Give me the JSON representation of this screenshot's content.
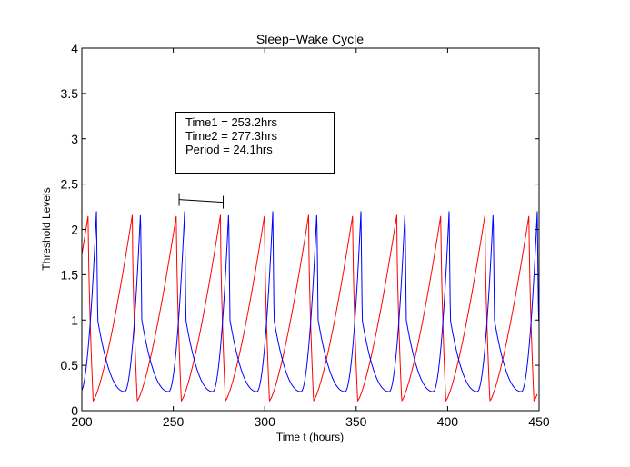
{
  "chart_data": {
    "type": "line",
    "title": "Sleep−Wake Cycle",
    "xlabel": "Time t (hours)",
    "ylabel": "Threshold Levels",
    "xlim": [
      200,
      450
    ],
    "ylim": [
      0,
      4
    ],
    "xticks": [
      "200",
      "250",
      "300",
      "350",
      "400",
      "450"
    ],
    "yticks": [
      "0",
      "0.5",
      "1",
      "1.5",
      "2",
      "2.5",
      "3",
      "3.5",
      "4"
    ],
    "grid": false,
    "series": [
      {
        "color": "#ff0000",
        "rise_start": [
          206.2,
          230.3,
          254.4,
          278.5,
          302.6,
          326.7,
          350.8,
          374.9,
          399.0,
          423.1,
          447.2
        ],
        "peaks": [
          203.5,
          227.6,
          251.7,
          275.8,
          299.9,
          324.0,
          348.1,
          372.2,
          396.3,
          420.4,
          444.5
        ],
        "min": 0.11,
        "max": 2.16,
        "start_value": 1.68
      },
      {
        "color": "#0000ff",
        "peaks": [
          208.0,
          232.1,
          256.2,
          280.3,
          304.4,
          328.5,
          352.6,
          376.7,
          400.8,
          424.9,
          449.0
        ],
        "min": 0.21,
        "max": 2.2,
        "start_value": 0.25,
        "end_value": 1.9
      }
    ],
    "annotation": {
      "lines": [
        "Time1 = 253.2hrs",
        "Time2 = 277.3hrs",
        "Period = 24.1hrs"
      ],
      "bracket": {
        "x1": 253.2,
        "x2": 277.3,
        "y1": 2.33,
        "y2": 2.3
      }
    },
    "colors": {
      "axis": "#000000",
      "red": "#ff0000",
      "blue": "#0000ff"
    }
  }
}
